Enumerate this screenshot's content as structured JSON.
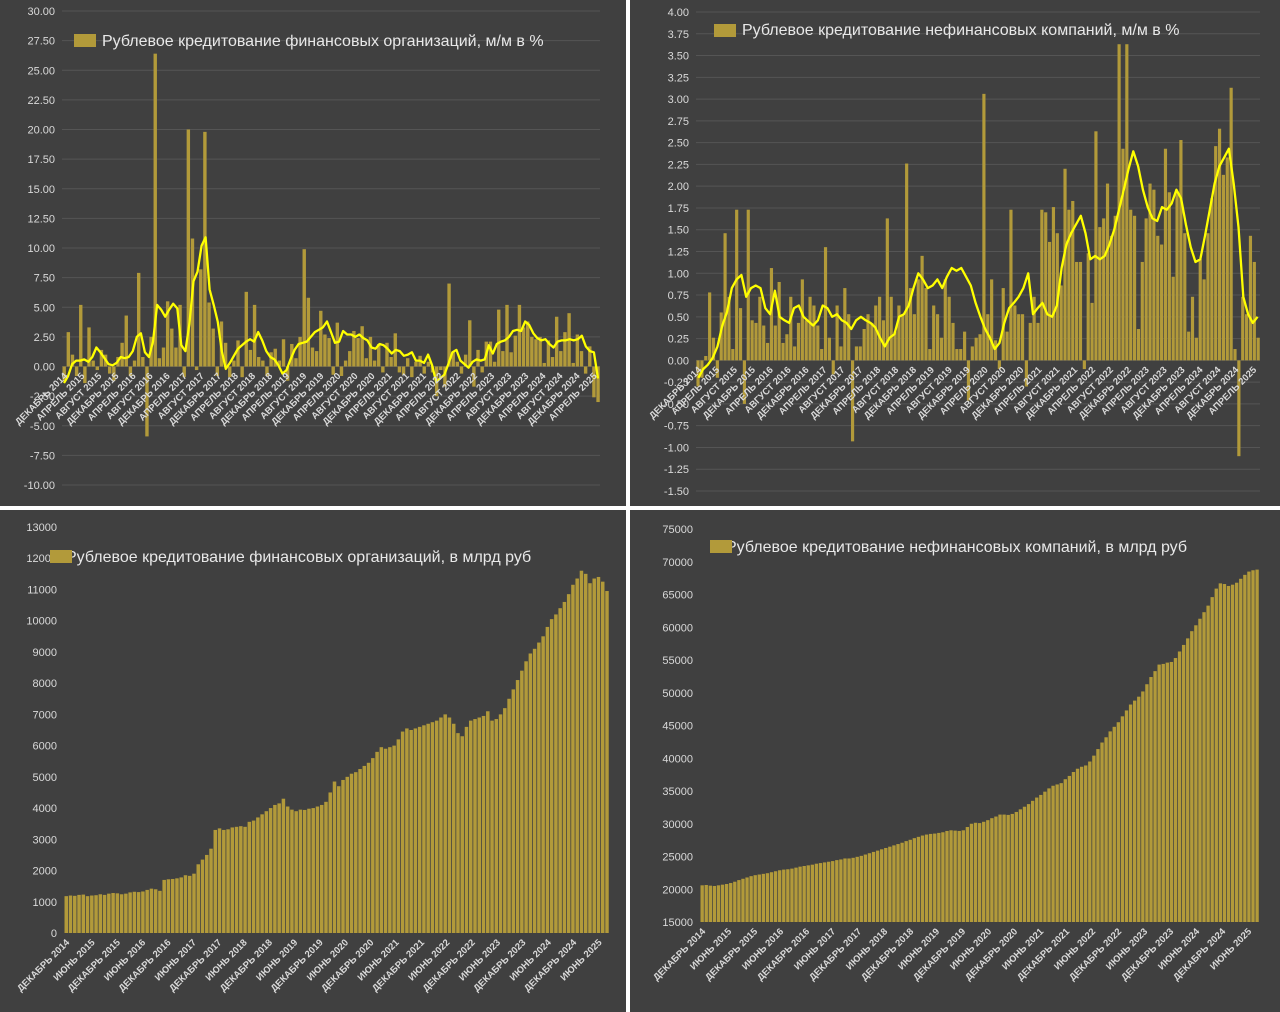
{
  "colors": {
    "background": "#404040",
    "bar": "#b29a3a",
    "line": "#ffff00",
    "grid": "#555555",
    "text": "#d9d9d9"
  },
  "chart_data": [
    {
      "id": "p1",
      "type": "bar",
      "legend": "Рублевое кредитование финансовых организаций, м/м в %",
      "legend_position": "top-left",
      "ylim": [
        -10,
        30
      ],
      "yticks": [
        "30.00",
        "27.50",
        "25.00",
        "22.50",
        "20.00",
        "17.50",
        "15.00",
        "12.50",
        "10.00",
        "7.50",
        "5.00",
        "2.50",
        "0.00",
        "-2.50",
        "-5.00",
        "-7.50",
        "-10.00"
      ],
      "xticks": [
        "ДЕКАБРЬ 2014",
        "АПРЕЛЬ 2015",
        "АВГУСТ 2015",
        "ДЕКАБРЬ 2015",
        "АПРЕЛЬ 2016",
        "АВГУСТ 2016",
        "ДЕКАБРЬ 2016",
        "АПРЕЛЬ 2017",
        "АВГУСТ 2017",
        "ДЕКАБРЬ 2017",
        "АПРЕЛЬ 2018",
        "АВГУСТ 2018",
        "ДЕКАБРЬ 2018",
        "АПРЕЛЬ 2019",
        "АВГУСТ 2019",
        "ДЕКАБРЬ 2019",
        "АПРЕЛЬ 2020",
        "АВГУСТ 2020",
        "ДЕКАБРЬ 2020",
        "АПРЕЛЬ 2021",
        "АВГУСТ 2021",
        "ДЕКАБРЬ 2021",
        "АПРЕЛЬ 2022",
        "АВГУСТ 2022",
        "ДЕКАБРЬ 2022",
        "АПРЕЛЬ 2023",
        "АВГУСТ 2023",
        "ДЕКАБРЬ 2023",
        "АПРЕЛЬ 2024",
        "АВГУСТ 2024",
        "ДЕКАБРЬ 2024",
        "АПРЕЛЬ 2025"
      ],
      "grid": true,
      "values": [
        -1.2,
        2.9,
        1,
        -0.8,
        5.2,
        -1.4,
        3.3,
        0.5,
        -0.3,
        1.4,
        1,
        -0.6,
        -1.2,
        0.8,
        2,
        4.3,
        -0.8,
        0.5,
        7.9,
        0.8,
        -5.9,
        2.5,
        26.4,
        0.7,
        1.6,
        5.5,
        3.2,
        1.6,
        5.2,
        -0.9,
        20,
        10.8,
        -0.3,
        8.2,
        19.8,
        5.4,
        3.2,
        -0.8,
        3.8,
        2,
        -0.9,
        0.5,
        2.2,
        -0.9,
        6.3,
        1.4,
        5.2,
        0.8,
        0.5,
        -0.8,
        1.2,
        1.5,
        0.5,
        2.3,
        -1.2,
        1.9,
        0.7,
        2.5,
        9.9,
        5.8,
        1.6,
        1.3,
        4.7,
        2.7,
        2.4,
        -0.7,
        3.7,
        -0.8,
        0.5,
        1.3,
        3,
        2.4,
        3.4,
        0.7,
        2.5,
        0.5,
        1.9,
        -0.5,
        2,
        0.8,
        2.8,
        -0.5,
        -0.7,
        0.7,
        -0.9,
        0.4,
        0.9,
        -0.6,
        0.4,
        -0.5,
        -2.5,
        -0.3,
        -1.7,
        7,
        1.2,
        0.4,
        -0.6,
        1,
        3.9,
        -1.7,
        1.4,
        -0.5,
        2.1,
        2.1,
        0.4,
        4.8,
        1.3,
        5.2,
        1.2,
        2.6,
        5.2,
        3.3,
        3.8,
        2.5,
        2.3,
        2.5,
        0.3,
        2.2,
        0.8,
        4.2,
        1.3,
        2.9,
        4.5,
        0.3,
        2.7,
        1.3,
        -0.6,
        1.7,
        -2.6,
        -3
      ],
      "series_line": [
        -1.4,
        -0.8,
        0.2,
        0.5,
        0.5,
        0.6,
        0.4,
        0.8,
        1.6,
        1.2,
        0.7,
        0.2,
        0.1,
        0.3,
        0.8,
        0.7,
        0.8,
        1.3,
        2.5,
        2.8,
        1.2,
        0.8,
        2.1,
        5.2,
        4.8,
        4.2,
        4.8,
        5.3,
        4.9,
        1.8,
        1.3,
        3.6,
        7.2,
        8,
        10.2,
        10.9,
        6.5,
        5.2,
        3.8,
        1.3,
        -0.2,
        0.3,
        0.9,
        1.5,
        1.8,
        2.1,
        2.3,
        2.1,
        2.9,
        2.2,
        1.3,
        0.8,
        0.6,
        0.1,
        -0.6,
        -0.3,
        0.6,
        1.4,
        1.9,
        2,
        2.1,
        2.5,
        2.9,
        3.1,
        3.3,
        3.8,
        2.9,
        2,
        2.1,
        3,
        2.7,
        2.7,
        2.5,
        2.7,
        2.4,
        2.2,
        1.6,
        1.5,
        1.9,
        1.8,
        1.5,
        1.1,
        1.4,
        1.3,
        0.9,
        1,
        1.2,
        0.5,
        0.5,
        0.3,
        1,
        0.1,
        -1.3,
        -1,
        -0.7,
        0.2,
        1.2,
        1.4,
        0.5,
        0.2,
        -0.1,
        0.4,
        0.6,
        0.5,
        0.6,
        1.8,
        1.1,
        1.9,
        2.1,
        2.2,
        2.5,
        3,
        3.1,
        3,
        3.8,
        3.5,
        2.8,
        2.4,
        2.2,
        2.3,
        1.9,
        1.6,
        2.1,
        2.2,
        2.2,
        2.3,
        2.2,
        2.3,
        2.6,
        1.7,
        1.3,
        1.2,
        -1
      ]
    },
    {
      "id": "p2",
      "type": "bar",
      "legend": "Рублевое кредитование нефинансовых компаний, м/м в %",
      "legend_position": "top-left",
      "ylim": [
        -1.5,
        4
      ],
      "yticks": [
        "4.00",
        "3.75",
        "3.50",
        "3.25",
        "3.00",
        "2.75",
        "2.50",
        "2.25",
        "2.00",
        "1.75",
        "1.50",
        "1.25",
        "1.00",
        "0.75",
        "0.50",
        "0.25",
        "0.00",
        "-0.25",
        "-0.50",
        "-0.75",
        "-1.00",
        "-1.25",
        "-1.50"
      ],
      "xticks": [
        "ДЕКАБРЬ 2014",
        "АПРЕЛЬ 2015",
        "АВГУСТ 2015",
        "ДЕКАБРЬ 2015",
        "АПРЕЛЬ 2016",
        "АВГУСТ 2016",
        "ДЕКАБРЬ 2016",
        "АПРЕЛЬ 2017",
        "АВГУСТ 2017",
        "ДЕКАБРЬ 2017",
        "АПРЕЛЬ 2018",
        "АВГУСТ 2018",
        "ДЕКАБРЬ 2018",
        "АПРЕЛЬ 2019",
        "АВГУСТ 2019",
        "ДЕКАБРЬ 2019",
        "АПРЕЛЬ 2020",
        "АВГУСТ 2020",
        "ДЕКАБРЬ 2020",
        "АПРЕЛЬ 2021",
        "АВГУСТ 2021",
        "ДЕКАБРЬ 2021",
        "АПРЕЛЬ 2022",
        "АВГУСТ 2022",
        "ДЕКАБРЬ 2022",
        "АПРЕЛЬ 2023",
        "АВГУСТ 2023",
        "ДЕКАБРЬ 2023",
        "АПРЕЛЬ 2024",
        "АВГУСТ 2024",
        "ДЕКАБРЬ 2024",
        "АПРЕЛЬ 2025"
      ],
      "grid": true,
      "values": [
        -0.3,
        -0.2,
        0.05,
        0.78,
        0.26,
        -0.2,
        0.55,
        1.46,
        0.73,
        0.13,
        1.73,
        0.6,
        -0.5,
        1.73,
        0.46,
        0.43,
        0.73,
        0.4,
        0.2,
        1.06,
        0.4,
        0.9,
        0.2,
        0.3,
        0.73,
        0.16,
        0.43,
        0.93,
        0.46,
        0.73,
        0.63,
        0.4,
        0.13,
        1.3,
        0.26,
        -0.16,
        0.63,
        0.16,
        0.83,
        0.53,
        -0.93,
        0.16,
        0.16,
        0.36,
        0.53,
        0.43,
        0.63,
        0.73,
        0.46,
        1.63,
        0.73,
        0.33,
        0.63,
        0.53,
        2.26,
        0.83,
        0.53,
        0.93,
        1.2,
        0.83,
        0.13,
        0.63,
        0.53,
        0.26,
        0.93,
        0.73,
        0.43,
        0.13,
        0.13,
        0.33,
        -0.46,
        0.16,
        0.26,
        0.3,
        3.06,
        0.53,
        0.93,
        0.23,
        -0.1,
        0.83,
        0.33,
        1.73,
        0.63,
        0.53,
        0.53,
        -0.3,
        0.43,
        0.73,
        0.43,
        1.73,
        1.7,
        1.36,
        1.76,
        1.46,
        0.86,
        2.2,
        1.73,
        1.83,
        1.13,
        1.13,
        -0.1,
        1.23,
        0.66,
        2.63,
        1.53,
        1.63,
        2.03,
        1.43,
        1.66,
        3.63,
        2.43,
        3.63,
        1.73,
        1.66,
        0.36,
        1.13,
        1.63,
        2.03,
        1.96,
        1.43,
        1.33,
        2.43,
        1.93,
        0.96,
        1.93,
        2.53,
        1.46,
        0.33,
        0.73,
        0.26,
        1.16,
        0.93,
        1.46,
        1.86,
        2.46,
        2.66,
        2.13,
        2.33,
        3.13,
        0.13,
        -1.1,
        0.73,
        0.53,
        1.43,
        1.13,
        0.26
      ],
      "series_line": [
        -0.2,
        -0.1,
        -0.05,
        0.03,
        0.16,
        0.4,
        0.56,
        0.83,
        0.93,
        0.98,
        0.73,
        0.83,
        0.86,
        0.83,
        0.6,
        0.53,
        0.8,
        0.5,
        0.46,
        0.43,
        0.6,
        0.63,
        0.5,
        0.45,
        0.4,
        0.46,
        0.63,
        0.6,
        0.5,
        0.53,
        0.46,
        0.43,
        0.36,
        0.46,
        0.5,
        0.46,
        0.43,
        0.38,
        0.26,
        0.16,
        0.26,
        0.3,
        0.5,
        0.53,
        0.63,
        0.83,
        1,
        0.93,
        0.83,
        0.86,
        0.93,
        0.83,
        0.96,
        1.06,
        1.03,
        1.06,
        0.96,
        0.86,
        0.66,
        0.5,
        0.36,
        0.26,
        0.13,
        0.2,
        0.43,
        0.6,
        0.66,
        0.73,
        0.83,
        1,
        0.53,
        0.6,
        0.66,
        0.53,
        0.5,
        0.63,
        1.06,
        1.33,
        1.46,
        1.56,
        1.66,
        1.46,
        1.16,
        1.2,
        1.16,
        1.2,
        1.33,
        1.5,
        1.73,
        1.96,
        2.2,
        2.4,
        2.23,
        1.96,
        1.76,
        1.63,
        1.6,
        1.76,
        1.73,
        1.8,
        1.96,
        1.86,
        1.56,
        1.3,
        1.13,
        1.16,
        1.43,
        1.73,
        2.03,
        2.23,
        2.33,
        2.43,
        2.03,
        1.53,
        0.73,
        0.53,
        0.43,
        0.5
      ]
    },
    {
      "id": "p3",
      "type": "bar",
      "legend": "Рублевое кредитование финансовых организаций, в млрд руб",
      "legend_position": "top-left",
      "ylim": [
        0,
        13000
      ],
      "yticks": [
        "13000",
        "12000",
        "11000",
        "10000",
        "9000",
        "8000",
        "7000",
        "6000",
        "5000",
        "4000",
        "3000",
        "2000",
        "1000",
        "0"
      ],
      "xticks": [
        "ДЕКАБРЬ 2014",
        "ИЮНЬ 2015",
        "ДЕКАБРЬ 2015",
        "ИЮНЬ 2016",
        "ДЕКАБРЬ 2016",
        "ИЮНЬ 2017",
        "ДЕКАБРЬ 2017",
        "ИЮНЬ 2018",
        "ДЕКАБРЬ 2018",
        "ИЮНЬ 2019",
        "ДЕКАБРЬ 2019",
        "ИЮНЬ 2020",
        "ДЕКАБРЬ 2020",
        "ИЮНЬ 2021",
        "ДЕКАБРЬ 2021",
        "ИЮНЬ 2022",
        "ДЕКАБРЬ 2022",
        "ИЮНЬ 2023",
        "ДЕКАБРЬ 2023",
        "ИЮНЬ 2024",
        "ДЕКАБРЬ 2024",
        "ИЮНЬ 2025"
      ],
      "grid": false,
      "values": [
        1180,
        1200,
        1190,
        1220,
        1230,
        1180,
        1200,
        1210,
        1240,
        1220,
        1260,
        1280,
        1270,
        1240,
        1260,
        1300,
        1320,
        1310,
        1330,
        1380,
        1420,
        1400,
        1350,
        1700,
        1720,
        1730,
        1750,
        1780,
        1850,
        1830,
        1900,
        2200,
        2350,
        2500,
        2700,
        3300,
        3350,
        3300,
        3320,
        3380,
        3400,
        3420,
        3400,
        3560,
        3600,
        3700,
        3800,
        3900,
        4000,
        4100,
        4150,
        4300,
        4050,
        3950,
        3900,
        3950,
        3940,
        3980,
        4000,
        4050,
        4100,
        4200,
        4500,
        4850,
        4700,
        4900,
        5000,
        5100,
        5150,
        5250,
        5350,
        5450,
        5600,
        5800,
        5950,
        5900,
        5950,
        6000,
        6200,
        6450,
        6550,
        6500,
        6550,
        6600,
        6650,
        6700,
        6750,
        6800,
        6900,
        7000,
        6900,
        6700,
        6400,
        6300,
        6600,
        6800,
        6850,
        6900,
        6950,
        7100,
        6800,
        6850,
        7000,
        7200,
        7500,
        7800,
        8100,
        8400,
        8700,
        8950,
        9100,
        9300,
        9500,
        9800,
        10050,
        10200,
        10400,
        10600,
        10850,
        11150,
        11350,
        11600,
        11500,
        11200,
        11350,
        11400,
        11250,
        10950
      ]
    },
    {
      "id": "p4",
      "type": "bar",
      "legend": "Рублевое кредитование нефинансовых компаний, в млрд руб",
      "legend_position": "top-left",
      "ylim": [
        15000,
        75000
      ],
      "yticks": [
        "75000",
        "70000",
        "65000",
        "60000",
        "55000",
        "50000",
        "45000",
        "40000",
        "35000",
        "30000",
        "25000",
        "20000",
        "15000"
      ],
      "xticks": [
        "ДЕКАБРЬ 2014",
        "ИЮНЬ 2015",
        "ДЕКАБРЬ 2015",
        "ИЮНЬ 2016",
        "ДЕКАБРЬ 2016",
        "ИЮНЬ 2017",
        "ДЕКАБРЬ 2017",
        "ИЮНЬ 2018",
        "ДЕКАБРЬ 2018",
        "ИЮНЬ 2019",
        "ДЕКАБРЬ 2019",
        "ИЮНЬ 2020",
        "ДЕКАБРЬ 2020",
        "ИЮНЬ 2021",
        "ДЕКАБРЬ 2021",
        "ИЮНЬ 2022",
        "ДЕКАБРЬ 2022",
        "ИЮНЬ 2023",
        "ДЕКАБРЬ 2023",
        "ИЮНЬ 2024",
        "ДЕКАБРЬ 2024",
        "ИЮНЬ 2025"
      ],
      "grid": false,
      "values": [
        20600,
        20650,
        20550,
        20500,
        20600,
        20700,
        20800,
        20950,
        21150,
        21400,
        21600,
        21800,
        22000,
        22150,
        22250,
        22350,
        22450,
        22600,
        22750,
        22900,
        23000,
        23050,
        23150,
        23300,
        23450,
        23550,
        23650,
        23750,
        23900,
        24000,
        24100,
        24200,
        24300,
        24450,
        24550,
        24700,
        24700,
        24800,
        24950,
        25100,
        25300,
        25500,
        25700,
        25900,
        26100,
        26300,
        26500,
        26700,
        26900,
        27100,
        27350,
        27550,
        27800,
        28000,
        28200,
        28350,
        28450,
        28500,
        28600,
        28700,
        28900,
        29000,
        28950,
        28900,
        29000,
        29500,
        30000,
        30150,
        30100,
        30300,
        30550,
        30850,
        31100,
        31400,
        31400,
        31350,
        31500,
        31800,
        32200,
        32600,
        33000,
        33500,
        34000,
        34400,
        34900,
        35400,
        35800,
        36000,
        36200,
        36800,
        37300,
        37900,
        38400,
        38700,
        38900,
        39500,
        40400,
        41400,
        42400,
        43200,
        44100,
        44800,
        45500,
        46400,
        47300,
        48200,
        48800,
        49400,
        50200,
        51300,
        52400,
        53300,
        54300,
        54400,
        54600,
        54700,
        55300,
        56300,
        57300,
        58300,
        59400,
        60300,
        61300,
        62300,
        63300,
        64600,
        65900,
        66700,
        66600,
        66300,
        66500,
        66800,
        67400,
        68000,
        68500,
        68700,
        68800
      ]
    }
  ]
}
